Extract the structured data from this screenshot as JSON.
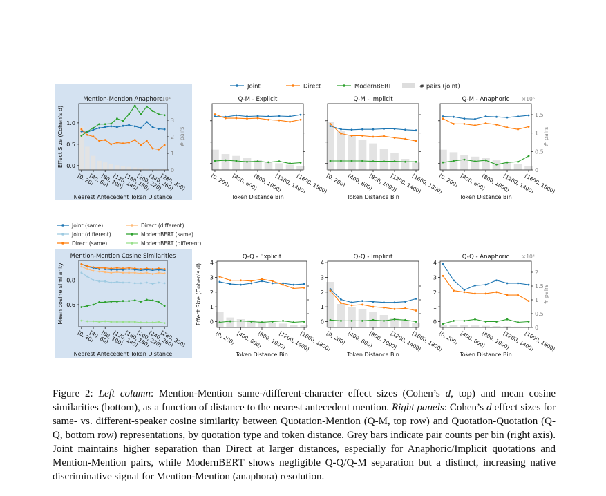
{
  "legend_top": {
    "items": [
      {
        "label": "Joint",
        "color": "#1f77b4",
        "kind": "line"
      },
      {
        "label": "Direct",
        "color": "#ff7f0e",
        "kind": "line"
      },
      {
        "label": "ModernBERT",
        "color": "#2ca02c",
        "kind": "line"
      },
      {
        "label": "# pairs (joint)",
        "color": "#dddddd",
        "kind": "bar"
      }
    ]
  },
  "legend_left": {
    "items": [
      {
        "label": "Joint (same)",
        "color": "#1f77b4",
        "alpha": 1
      },
      {
        "label": "Direct (different)",
        "color": "#ffbb78",
        "alpha": 1
      },
      {
        "label": "Joint (different)",
        "color": "#9ecae1",
        "alpha": 1
      },
      {
        "label": "ModernBERT (same)",
        "color": "#2ca02c",
        "alpha": 1
      },
      {
        "label": "Direct (same)",
        "color": "#ff7f0e",
        "alpha": 1
      },
      {
        "label": "ModernBERT (different)",
        "color": "#98df8a",
        "alpha": 1
      }
    ]
  },
  "caption": {
    "fig": "Figure 2: ",
    "left_col_label": "Left column",
    "part1": ": Mention-Mention same-/different-character effect sizes (Cohen’s ",
    "d1": "d",
    "part2": ", top) and mean cosine similarities (bottom), as a function of distance to the nearest antecedent mention. ",
    "right_label": "Right panels",
    "part3": ": Cohen’s ",
    "d2": "d",
    "part4": " effect sizes for same- vs. different-speaker cosine similarity between Quotation-Mention (Q-M, top row) and Quotation-Quotation (Q-Q, bottom row) representations, by quotation type and token distance. Grey bars indicate pair counts per bin (right axis). Joint maintains higher separation than Direct at larger distances, especially for Anaphoric/Implicit quotations and Mention-Mention pairs, while ModernBERT shows negligible Q-Q/Q-M separation but a distinct, increasing native discriminative signal for Mention-Mention (anaphora) resolution."
  },
  "chart_data": [
    {
      "id": "mm-anaphora",
      "type": "line",
      "title": "Mention-Mention Anaphora",
      "xlabel": "Nearest Antecedent Token Distance",
      "ylabel": "Effect Size (Cohen's d)",
      "y2label": "# pairs",
      "y2_multiplier": "×10⁴",
      "ylim": [
        -0.1,
        1.45
      ],
      "y2lim": [
        0,
        4
      ],
      "yticks": [
        0.0,
        0.5,
        1.0
      ],
      "y2ticks": [
        0,
        1,
        2,
        3
      ],
      "categories": [
        "[0, 20)",
        "[20, 40)",
        "[40, 60)",
        "[60, 80)",
        "[80, 100)",
        "[100, 120)",
        "[120, 140)",
        "[140, 160)",
        "[160, 180)",
        "[180, 200)",
        "[200, 220)",
        "[220, 240)",
        "[240, 260)",
        "[260, 280)",
        "[280, 300)"
      ],
      "tick_labels": [
        "[0, 20)",
        "[40, 60)",
        "[80, 100)",
        "[120, 140)",
        "[160, 180)",
        "[200, 220)",
        "[240, 260)",
        "[280, 300)"
      ],
      "tick_indices": [
        0,
        2,
        4,
        6,
        8,
        10,
        12,
        14
      ],
      "bars": [
        2.6,
        1.4,
        0.85,
        0.55,
        0.45,
        0.35,
        0.28,
        0.22,
        0.18,
        0.14,
        0.12,
        0.1,
        0.08,
        0.07,
        0.06
      ],
      "series": [
        {
          "name": "Joint",
          "color": "#1f77b4",
          "values": [
            0.8,
            0.78,
            0.84,
            0.88,
            0.9,
            0.92,
            0.9,
            0.93,
            0.95,
            0.92,
            0.88,
            1.02,
            0.9,
            0.86,
            0.85
          ]
        },
        {
          "name": "Direct",
          "color": "#ff7f0e",
          "values": [
            0.85,
            0.72,
            0.68,
            0.58,
            0.6,
            0.5,
            0.54,
            0.52,
            0.54,
            0.6,
            0.48,
            0.58,
            0.4,
            0.38,
            0.48
          ]
        },
        {
          "name": "ModernBERT",
          "color": "#2ca02c",
          "values": [
            0.7,
            0.8,
            0.88,
            0.97,
            0.97,
            0.98,
            1.1,
            1.05,
            1.2,
            1.4,
            1.2,
            1.38,
            1.28,
            1.2,
            1.18
          ]
        }
      ]
    },
    {
      "id": "qm-explicit",
      "type": "line",
      "title": "Q-M - Explicit",
      "xlabel": "Token Distance Bin",
      "ylim": [
        -0.3,
        2.8
      ],
      "y2lim": [
        0,
        1.8
      ],
      "categories": [
        "[0, 200)",
        "[200, 400)",
        "[400, 600)",
        "[600, 800)",
        "[800, 1000)",
        "[1000, 1200)",
        "[1200, 1400)",
        "[1400, 1600)",
        "[1600, 1800)"
      ],
      "tick_labels": [
        "[0, 200)",
        "[400, 600)",
        "[800, 1000)",
        "[1200, 1400)",
        "[1600, 1800)"
      ],
      "tick_indices": [
        0,
        2,
        4,
        6,
        8
      ],
      "bars": [
        0.55,
        0.43,
        0.38,
        0.33,
        0.28,
        0.22,
        0.18,
        0.14,
        0.1
      ],
      "series": [
        {
          "name": "Joint",
          "color": "#1f77b4",
          "values": [
            2.2,
            2.18,
            2.25,
            2.2,
            2.22,
            2.2,
            2.22,
            2.2,
            2.28
          ]
        },
        {
          "name": "Direct",
          "color": "#ff7f0e",
          "values": [
            2.3,
            2.12,
            2.12,
            2.1,
            2.12,
            2.05,
            2.02,
            1.95,
            2.05
          ]
        },
        {
          "name": "ModernBERT",
          "color": "#2ca02c",
          "values": [
            0.12,
            0.15,
            0.12,
            0.08,
            0.1,
            0.06,
            0.1,
            0.0,
            0.04
          ]
        }
      ]
    },
    {
      "id": "qm-implicit",
      "type": "line",
      "title": "Q-M - Implicit",
      "xlabel": "Token Distance Bin",
      "ylim": [
        -0.3,
        2.8
      ],
      "y2lim": [
        0,
        1.8
      ],
      "categories": [
        "[0, 200)",
        "[200, 400)",
        "[400, 600)",
        "[600, 800)",
        "[800, 1000)",
        "[1000, 1200)",
        "[1200, 1400)",
        "[1400, 1600)",
        "[1600, 1800)"
      ],
      "tick_labels": [
        "[0, 200)",
        "[400, 600)",
        "[800, 1000)",
        "[1200, 1400)",
        "[1600, 1800)"
      ],
      "tick_indices": [
        0,
        2,
        4,
        6,
        8
      ],
      "bars": [
        1.3,
        1.05,
        0.95,
        0.82,
        0.72,
        0.58,
        0.45,
        0.3,
        0.2
      ],
      "series": [
        {
          "name": "Joint",
          "color": "#1f77b4",
          "values": [
            1.75,
            1.6,
            1.58,
            1.6,
            1.6,
            1.62,
            1.62,
            1.58,
            1.55
          ]
        },
        {
          "name": "Direct",
          "color": "#ff7f0e",
          "values": [
            1.85,
            1.4,
            1.3,
            1.3,
            1.25,
            1.28,
            1.2,
            1.15,
            1.05
          ]
        },
        {
          "name": "ModernBERT",
          "color": "#2ca02c",
          "values": [
            0.12,
            0.12,
            0.12,
            0.12,
            0.1,
            0.1,
            0.1,
            0.08,
            0.08
          ]
        }
      ]
    },
    {
      "id": "qm-anaphoric",
      "type": "line",
      "title": "Q-M - Anaphoric",
      "xlabel": "Token Distance Bin",
      "ylim": [
        -0.3,
        2.8
      ],
      "y2label": "# pairs",
      "y2_multiplier": "×10⁵",
      "y2lim": [
        0,
        1.8
      ],
      "y2ticks": [
        0.0,
        0.5,
        1.0,
        1.5
      ],
      "categories": [
        "[0, 200)",
        "[200, 400)",
        "[400, 600)",
        "[600, 800)",
        "[800, 1000)",
        "[1000, 1200)",
        "[1200, 1400)",
        "[1400, 1600)",
        "[1600, 1800)"
      ],
      "tick_labels": [
        "[0, 200)",
        "[400, 600)",
        "[800, 1000)",
        "[1200, 1400)",
        "[1600, 1800)"
      ],
      "tick_indices": [
        0,
        2,
        4,
        6,
        8
      ],
      "bars": [
        0.55,
        0.48,
        0.4,
        0.36,
        0.32,
        0.26,
        0.2,
        0.15,
        0.1
      ],
      "series": [
        {
          "name": "Joint",
          "color": "#1f77b4",
          "values": [
            2.2,
            2.18,
            2.1,
            2.08,
            2.2,
            2.18,
            2.15,
            2.2,
            2.25
          ]
        },
        {
          "name": "Direct",
          "color": "#ff7f0e",
          "values": [
            2.1,
            1.85,
            1.85,
            1.78,
            1.88,
            1.82,
            1.68,
            1.6,
            1.72
          ]
        },
        {
          "name": "ModernBERT",
          "color": "#2ca02c",
          "values": [
            0.05,
            0.12,
            0.18,
            0.1,
            0.15,
            -0.05,
            0.05,
            0.08,
            0.35
          ]
        }
      ]
    },
    {
      "id": "mm-cosine",
      "type": "line",
      "title": "Mention-Mention Cosine Similarities",
      "xlabel": "Nearest Antecedent Token Distance",
      "ylabel": "Mean cosine similarity",
      "ylim": [
        0.42,
        0.96
      ],
      "yticks": [
        0.6,
        0.8
      ],
      "categories": [
        "[0, 20)",
        "[20, 40)",
        "[40, 60)",
        "[60, 80)",
        "[80, 100)",
        "[100, 120)",
        "[120, 140)",
        "[140, 160)",
        "[160, 180)",
        "[180, 200)",
        "[200, 220)",
        "[220, 240)",
        "[240, 260)",
        "[260, 280)",
        "[280, 300)"
      ],
      "tick_labels": [
        "[0, 20)",
        "[40, 60)",
        "[80, 100)",
        "[120, 140)",
        "[160, 180)",
        "[200, 220)",
        "[240, 260)",
        "[280, 300)"
      ],
      "tick_indices": [
        0,
        2,
        4,
        6,
        8,
        10,
        12,
        14
      ],
      "series": [
        {
          "name": "Joint (same)",
          "color": "#1f77b4",
          "values": [
            0.93,
            0.91,
            0.9,
            0.89,
            0.89,
            0.885,
            0.885,
            0.885,
            0.89,
            0.885,
            0.88,
            0.885,
            0.88,
            0.885,
            0.88
          ]
        },
        {
          "name": "Joint (different)",
          "color": "#9ecae1",
          "values": [
            0.86,
            0.83,
            0.8,
            0.79,
            0.79,
            0.78,
            0.785,
            0.78,
            0.78,
            0.775,
            0.775,
            0.78,
            0.77,
            0.78,
            0.775
          ]
        },
        {
          "name": "Direct (same)",
          "color": "#ff7f0e",
          "values": [
            0.93,
            0.915,
            0.905,
            0.9,
            0.9,
            0.895,
            0.9,
            0.895,
            0.9,
            0.895,
            0.89,
            0.895,
            0.89,
            0.895,
            0.89
          ]
        },
        {
          "name": "Direct (different)",
          "color": "#ffbb78",
          "values": [
            0.91,
            0.89,
            0.875,
            0.87,
            0.865,
            0.86,
            0.865,
            0.86,
            0.86,
            0.86,
            0.855,
            0.86,
            0.85,
            0.86,
            0.855
          ]
        },
        {
          "name": "ModernBERT (same)",
          "color": "#2ca02c",
          "values": [
            0.58,
            0.59,
            0.6,
            0.62,
            0.62,
            0.625,
            0.625,
            0.63,
            0.63,
            0.635,
            0.625,
            0.64,
            0.635,
            0.62,
            0.59
          ]
        },
        {
          "name": "ModernBERT (different)",
          "color": "#98df8a",
          "values": [
            0.47,
            0.465,
            0.465,
            0.46,
            0.465,
            0.46,
            0.46,
            0.46,
            0.46,
            0.46,
            0.455,
            0.455,
            0.455,
            0.46,
            0.45
          ]
        }
      ]
    },
    {
      "id": "qq-explicit",
      "type": "line",
      "title": "Q-Q - Explicit",
      "xlabel": "Token Distance Bin",
      "ylabel": "Effect Size (Cohen's d)",
      "ylim": [
        -0.4,
        4.1
      ],
      "yticks": [
        0,
        1,
        2,
        3,
        4
      ],
      "y2lim": [
        0,
        2.4
      ],
      "categories": [
        "[0, 200)",
        "[200, 400)",
        "[400, 600)",
        "[600, 800)",
        "[800, 1000)",
        "[1000, 1200)",
        "[1200, 1400)",
        "[1400, 1600)",
        "[1600, 1800)"
      ],
      "tick_labels": [
        "[0, 200)",
        "[400, 600)",
        "[800, 1000)",
        "[1200, 1400)",
        "[1600, 1800)"
      ],
      "tick_indices": [
        0,
        2,
        4,
        6,
        8
      ],
      "bars": [
        0.55,
        0.36,
        0.3,
        0.26,
        0.22,
        0.18,
        0.14,
        0.1,
        0.08
      ],
      "series": [
        {
          "name": "Joint",
          "color": "#1f77b4",
          "values": [
            2.7,
            2.55,
            2.5,
            2.6,
            2.75,
            2.6,
            2.6,
            2.5,
            2.55
          ]
        },
        {
          "name": "Direct",
          "color": "#ff7f0e",
          "values": [
            3.05,
            2.8,
            2.8,
            2.75,
            2.88,
            2.75,
            2.5,
            2.25,
            2.3
          ]
        },
        {
          "name": "ModernBERT",
          "color": "#2ca02c",
          "values": [
            -0.05,
            0.02,
            0.05,
            0.0,
            -0.05,
            0.0,
            0.05,
            -0.05,
            0.0
          ]
        }
      ]
    },
    {
      "id": "qq-implicit",
      "type": "line",
      "title": "Q-Q - Implicit",
      "xlabel": "Token Distance Bin",
      "ylim": [
        -0.4,
        4.1
      ],
      "yticks": [
        0,
        1,
        2,
        3,
        4
      ],
      "y2lim": [
        0,
        2.4
      ],
      "categories": [
        "[0, 200)",
        "[200, 400)",
        "[400, 600)",
        "[600, 800)",
        "[800, 1000)",
        "[1000, 1200)",
        "[1200, 1400)",
        "[1400, 1600)",
        "[1600, 1800)"
      ],
      "tick_labels": [
        "[0, 200)",
        "[400, 600)",
        "[800, 1000)",
        "[1200, 1400)",
        "[1600, 1800)"
      ],
      "tick_indices": [
        0,
        2,
        4,
        6,
        8
      ],
      "bars": [
        1.65,
        0.85,
        0.75,
        0.65,
        0.55,
        0.45,
        0.35,
        0.25,
        0.15
      ],
      "series": [
        {
          "name": "Joint",
          "color": "#1f77b4",
          "values": [
            2.2,
            1.5,
            1.3,
            1.4,
            1.35,
            1.3,
            1.3,
            1.35,
            1.55
          ]
        },
        {
          "name": "Direct",
          "color": "#ff7f0e",
          "values": [
            2.1,
            1.25,
            1.1,
            1.15,
            1.0,
            0.95,
            0.85,
            0.9,
            0.75
          ]
        },
        {
          "name": "ModernBERT",
          "color": "#2ca02c",
          "values": [
            0.1,
            0.05,
            0.05,
            0.05,
            0.1,
            0.05,
            0.15,
            0.1,
            0.0
          ]
        }
      ]
    },
    {
      "id": "qq-anaphoric",
      "type": "line",
      "title": "Q-Q - Anaphoric",
      "xlabel": "Token Distance Bin",
      "ylim": [
        -0.4,
        4.1
      ],
      "yticks": [
        0,
        1,
        2,
        3,
        4
      ],
      "y2label": "# pairs",
      "y2_multiplier": "×10⁴",
      "y2lim": [
        0,
        2.4
      ],
      "y2ticks": [
        0.0,
        0.5,
        1.0,
        1.5,
        2.0
      ],
      "categories": [
        "[0, 200)",
        "[200, 400)",
        "[400, 600)",
        "[600, 800)",
        "[800, 1000)",
        "[1000, 1200)",
        "[1200, 1400)",
        "[1400, 1600)",
        "[1600, 1800)"
      ],
      "tick_labels": [
        "[0, 200)",
        "[400, 600)",
        "[800, 1000)",
        "[1200, 1400)",
        "[1600, 1800)"
      ],
      "tick_indices": [
        0,
        2,
        4,
        6,
        8
      ],
      "bars": [
        0.1,
        0.09,
        0.08,
        0.07,
        0.06,
        0.05,
        0.04,
        0.03,
        0.02
      ],
      "series": [
        {
          "name": "Joint",
          "color": "#1f77b4",
          "values": [
            3.9,
            2.8,
            2.15,
            2.45,
            2.5,
            2.8,
            2.6,
            2.6,
            2.5
          ]
        },
        {
          "name": "Direct",
          "color": "#ff7f0e",
          "values": [
            3.1,
            2.1,
            2.0,
            1.9,
            1.9,
            2.0,
            1.8,
            1.8,
            1.4
          ]
        },
        {
          "name": "ModernBERT",
          "color": "#2ca02c",
          "values": [
            -0.15,
            0.05,
            0.05,
            0.15,
            0.0,
            0.0,
            0.15,
            -0.05,
            0.0
          ]
        }
      ]
    }
  ]
}
